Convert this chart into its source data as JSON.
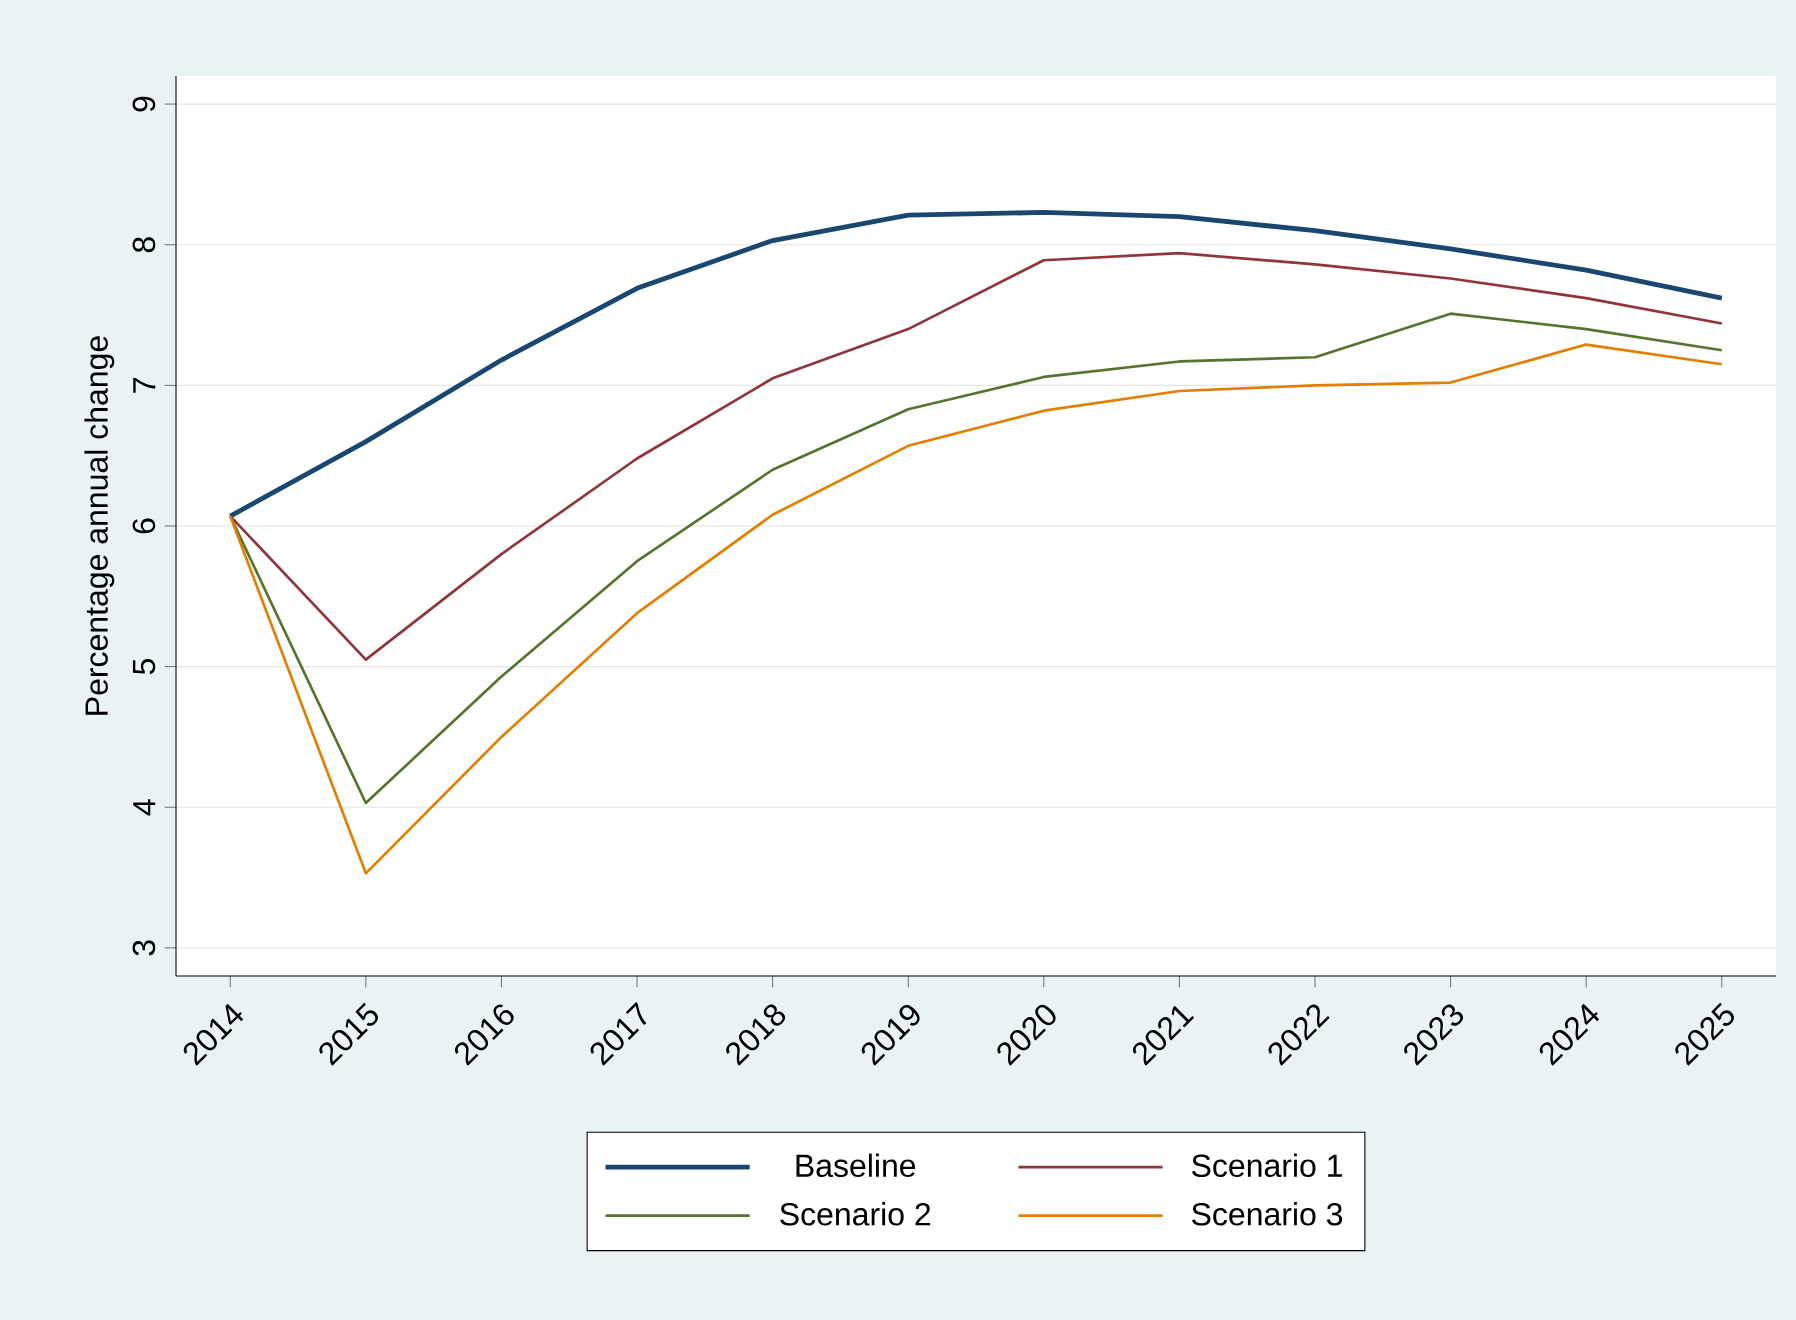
{
  "chart_data": {
    "type": "line",
    "ylabel": "Percentage annual change",
    "x": [
      2014,
      2015,
      2016,
      2017,
      2018,
      2019,
      2020,
      2021,
      2022,
      2023,
      2024,
      2025
    ],
    "xlim": [
      2013.6,
      2025.4
    ],
    "xticks": [
      2014,
      2015,
      2016,
      2017,
      2018,
      2019,
      2020,
      2021,
      2022,
      2023,
      2024,
      2025
    ],
    "ylim": [
      2.8,
      9.2
    ],
    "yticks": [
      3,
      4,
      5,
      6,
      7,
      8,
      9
    ],
    "grid": "y",
    "legend": "bottom",
    "marker": "none",
    "line_style": "solid",
    "series": [
      {
        "name": "Baseline",
        "color": "#1a476f",
        "values": [
          6.07,
          6.6,
          7.18,
          7.69,
          8.03,
          8.21,
          8.23,
          8.2,
          8.1,
          7.97,
          7.82,
          7.62
        ]
      },
      {
        "name": "Scenario 1",
        "color": "#90353b",
        "values": [
          6.07,
          5.05,
          5.8,
          6.48,
          7.05,
          7.4,
          7.89,
          7.94,
          7.86,
          7.76,
          7.62,
          7.44
        ]
      },
      {
        "name": "Scenario 2",
        "color": "#55752f",
        "values": [
          6.07,
          4.03,
          4.93,
          5.75,
          6.4,
          6.83,
          7.06,
          7.17,
          7.2,
          7.51,
          7.4,
          7.25
        ]
      },
      {
        "name": "Scenario 3",
        "color": "#e37e00",
        "values": [
          6.07,
          3.53,
          4.5,
          5.38,
          6.08,
          6.57,
          6.82,
          6.96,
          7.0,
          7.02,
          7.29,
          7.15
        ]
      }
    ]
  }
}
